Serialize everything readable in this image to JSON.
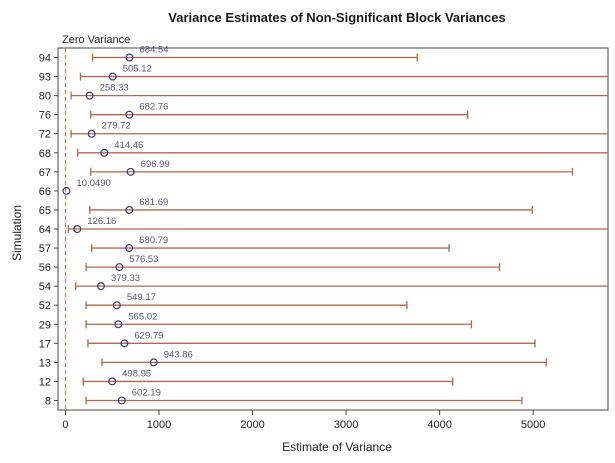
{
  "chart_data": {
    "type": "interval",
    "title": "Variance Estimates of Non-Significant Block Variances",
    "xlabel": "Estimate of Variance",
    "ylabel": "Simulation",
    "reference_line": {
      "value": 0,
      "label": "Zero Variance"
    },
    "xlim": [
      -80,
      5800
    ],
    "x_ticks": [
      0,
      1000,
      2000,
      3000,
      4000,
      5000
    ],
    "x_tick_labels": [
      "0",
      "1000",
      "2000",
      "3000",
      "4000",
      "5000"
    ],
    "rows": [
      {
        "label": "94",
        "estimate": 684.54,
        "estimate_label": "684.54",
        "lower": 290,
        "upper": 3760
      },
      {
        "label": "93",
        "estimate": 505.12,
        "estimate_label": "505.12",
        "lower": 160,
        "upper": 5800
      },
      {
        "label": "80",
        "estimate": 258.33,
        "estimate_label": "258.33",
        "lower": 60,
        "upper": 5800
      },
      {
        "label": "76",
        "estimate": 682.76,
        "estimate_label": "682.76",
        "lower": 270,
        "upper": 4300
      },
      {
        "label": "72",
        "estimate": 279.72,
        "estimate_label": "279.72",
        "lower": 60,
        "upper": 5800
      },
      {
        "label": "68",
        "estimate": 414.46,
        "estimate_label": "414.46",
        "lower": 130,
        "upper": 5800
      },
      {
        "label": "67",
        "estimate": 696.99,
        "estimate_label": "696.99",
        "lower": 270,
        "upper": 5420
      },
      {
        "label": "66",
        "estimate": 10.049,
        "estimate_label": "10.0490",
        "lower": null,
        "upper": null
      },
      {
        "label": "65",
        "estimate": 681.69,
        "estimate_label": "681.69",
        "lower": 260,
        "upper": 4990
      },
      {
        "label": "64",
        "estimate": 126.16,
        "estimate_label": "126.16",
        "lower": 30,
        "upper": 5800
      },
      {
        "label": "57",
        "estimate": 680.79,
        "estimate_label": "680.79",
        "lower": 280,
        "upper": 4100
      },
      {
        "label": "56",
        "estimate": 576.53,
        "estimate_label": "576.53",
        "lower": 220,
        "upper": 4640
      },
      {
        "label": "54",
        "estimate": 379.33,
        "estimate_label": "379.33",
        "lower": 110,
        "upper": 5800
      },
      {
        "label": "52",
        "estimate": 549.17,
        "estimate_label": "549.17",
        "lower": 220,
        "upper": 3650
      },
      {
        "label": "29",
        "estimate": 565.02,
        "estimate_label": "565.02",
        "lower": 220,
        "upper": 4340
      },
      {
        "label": "17",
        "estimate": 629.79,
        "estimate_label": "629.79",
        "lower": 240,
        "upper": 5020
      },
      {
        "label": "13",
        "estimate": 943.86,
        "estimate_label": "943.86",
        "lower": 390,
        "upper": 5140
      },
      {
        "label": "12",
        "estimate": 498.95,
        "estimate_label": "498.95",
        "lower": 190,
        "upper": 4140
      },
      {
        "label": "8",
        "estimate": 602.19,
        "estimate_label": "602.19",
        "lower": 220,
        "upper": 4880
      }
    ],
    "colors": {
      "interval": "#b5664e",
      "marker": "#3b3b6e",
      "reference": "#c08060",
      "frame": "#444444",
      "data_label": "#555577"
    }
  }
}
